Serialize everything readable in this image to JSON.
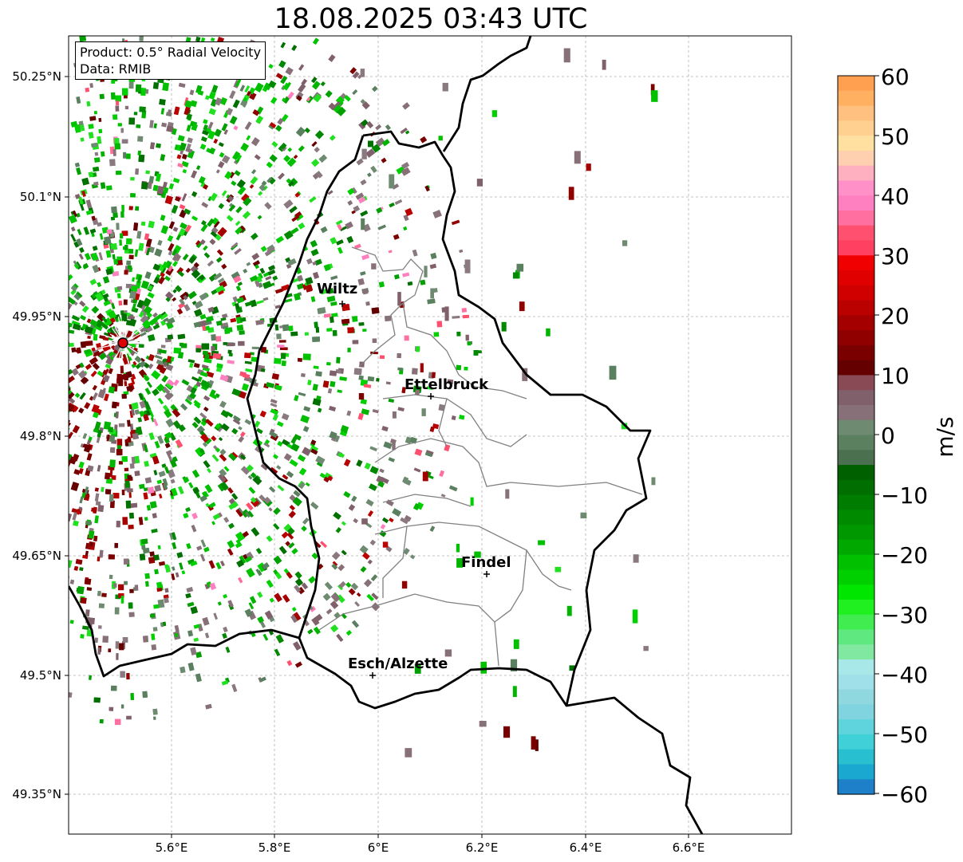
{
  "title": "18.08.2025 03:43 UTC",
  "info": {
    "product": "Product: 0.5° Radial Velocity",
    "data": "Data: RMIB"
  },
  "axes": {
    "lon_ticks": [
      "5.6°E",
      "5.8°E",
      "6°E",
      "6.2°E",
      "6.4°E",
      "6.6°E"
    ],
    "lat_ticks": [
      "50.25°N",
      "50.1°N",
      "49.95°N",
      "49.8°N",
      "49.65°N",
      "49.5°N",
      "49.35°N"
    ],
    "grid": true
  },
  "cities": [
    {
      "name": "Wiltz"
    },
    {
      "name": "Ettelbruck"
    },
    {
      "name": "Findel"
    },
    {
      "name": "Esch/Alzette"
    }
  ],
  "colorbar": {
    "label": "m/s",
    "ticks": [
      "60",
      "50",
      "40",
      "30",
      "20",
      "10",
      "0",
      "−10",
      "−20",
      "−30",
      "−40",
      "−50",
      "−60"
    ],
    "range": [
      -60,
      60
    ]
  },
  "colors": {
    "border": "#000000",
    "cantons": "#808080",
    "radar_site": "#e00000"
  }
}
